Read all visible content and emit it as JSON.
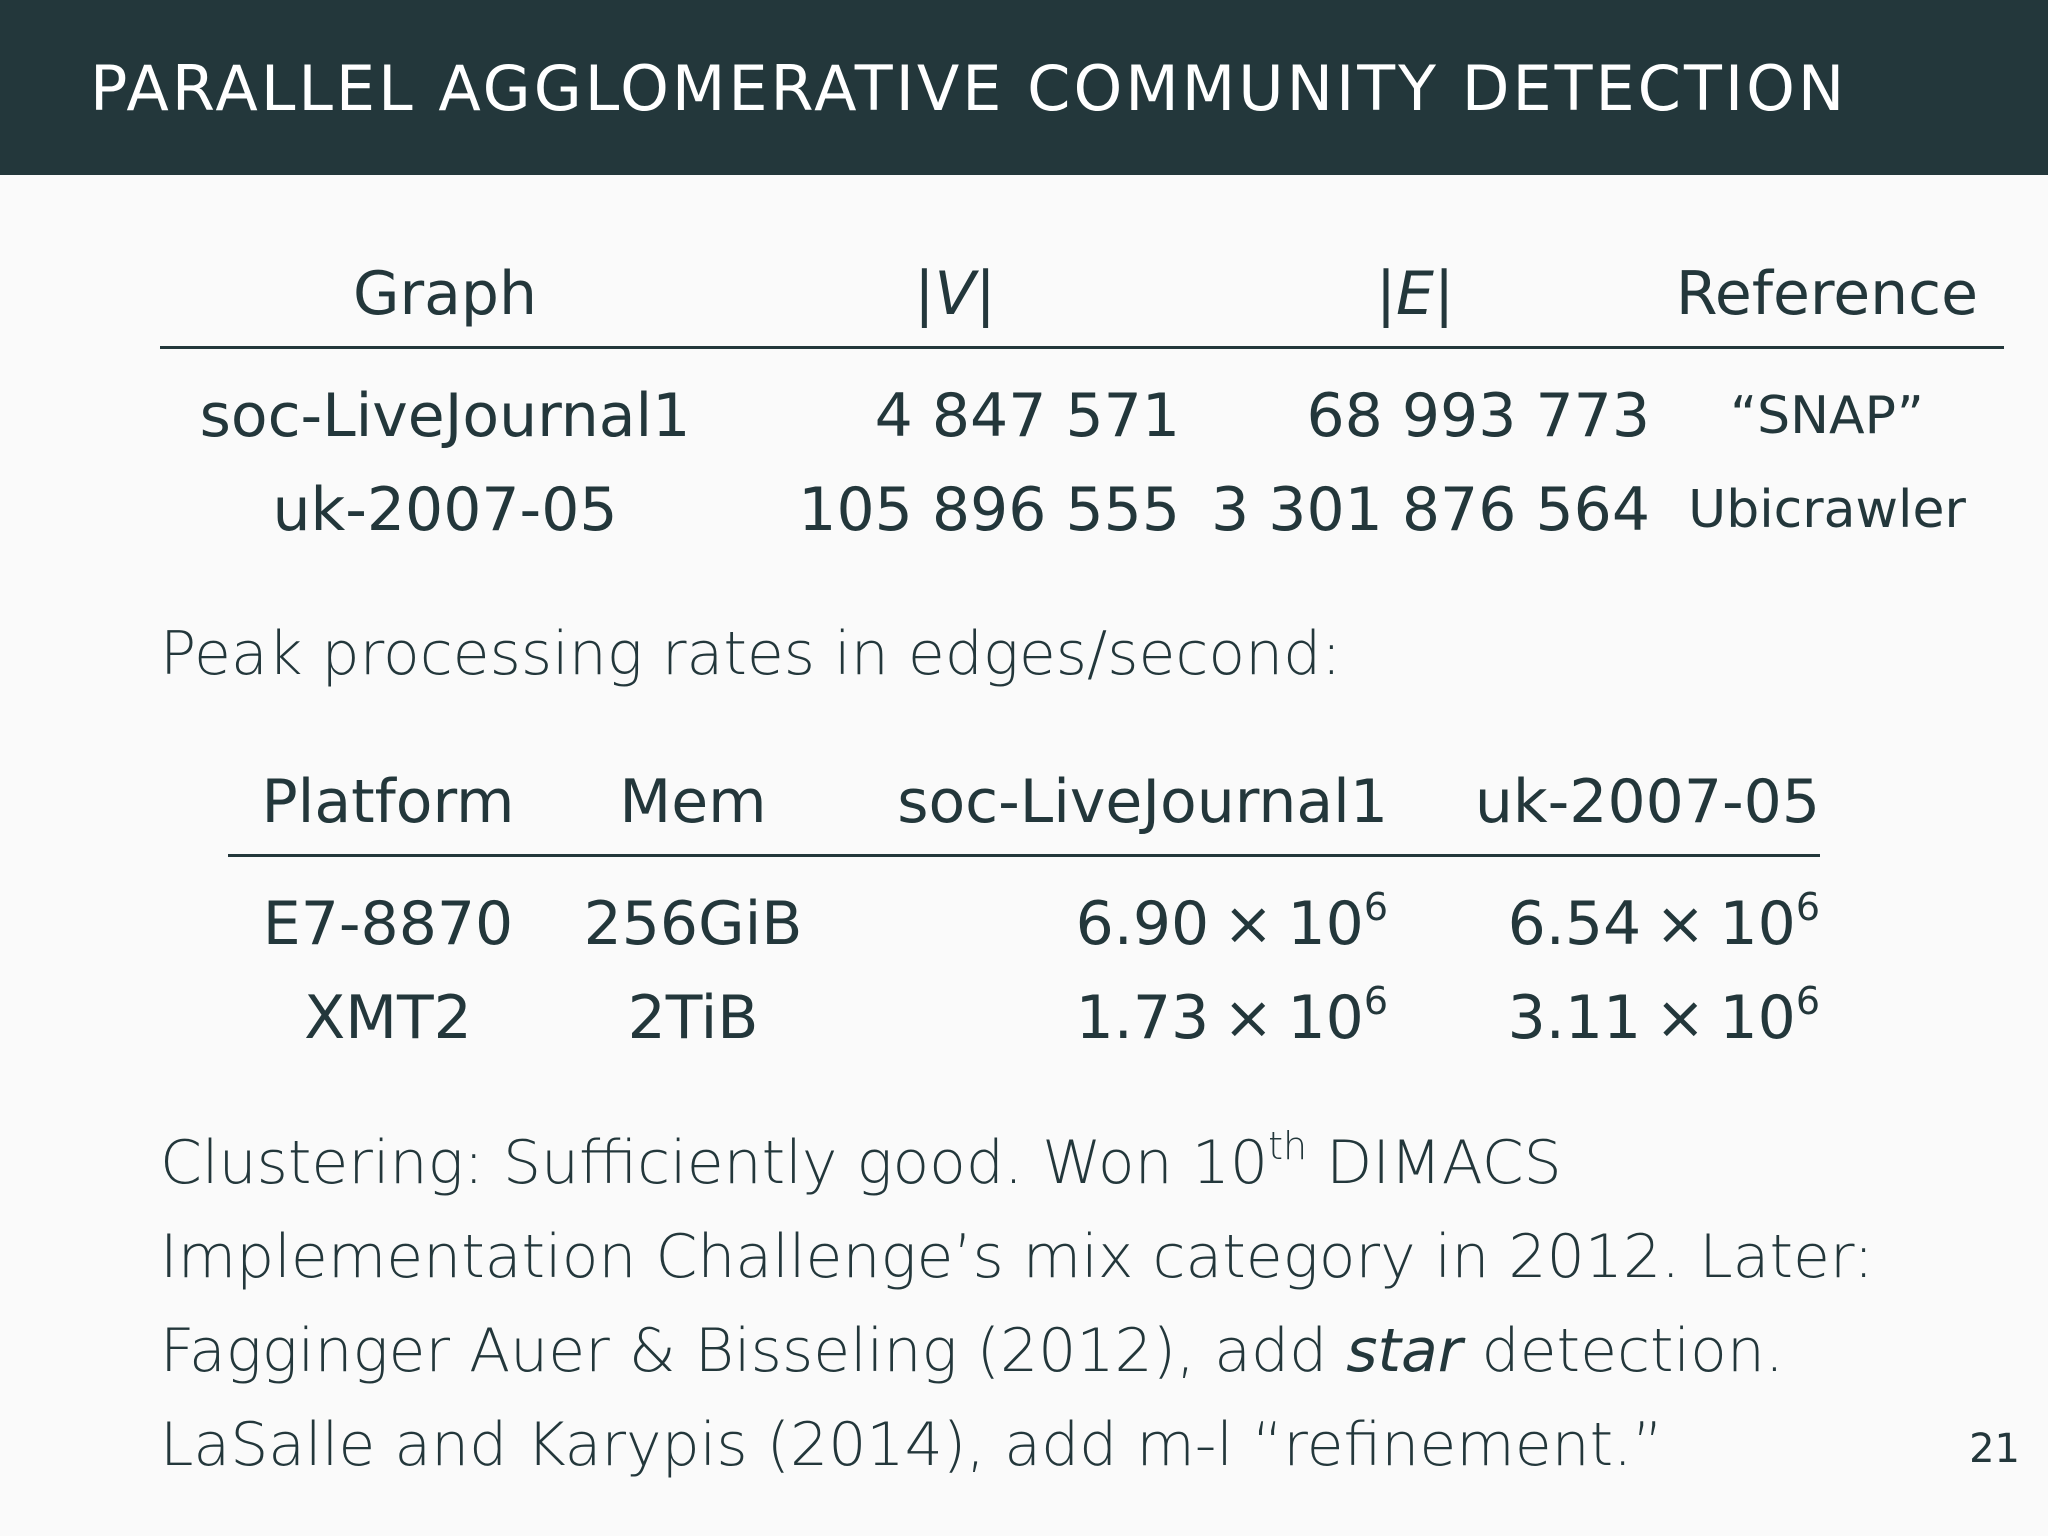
{
  "header": {
    "title": "PARALLEL AGGLOMERATIVE COMMUNITY DETECTION"
  },
  "graph_table": {
    "headers": {
      "graph": "Graph",
      "v": "|V|",
      "e": "|E|",
      "reference": "Reference"
    },
    "rows": [
      {
        "graph": "soc-LiveJournal1",
        "v": "4 847 571",
        "e": "68 993 773",
        "reference": "“SNAP”"
      },
      {
        "graph": "uk-2007-05",
        "v": "105 896 555",
        "e": "3 301 876 564",
        "reference": "Ubicrawler"
      }
    ]
  },
  "rates_heading": "Peak processing rates in edges/second:",
  "rates_table": {
    "headers": {
      "platform": "Platform",
      "mem": "Mem",
      "lj": "soc-LiveJournal1",
      "uk": "uk-2007-05"
    },
    "times_symbol": "×",
    "rows": [
      {
        "platform": "E7-8870",
        "mem": "256GiB",
        "lj_mant": "6.90",
        "lj_base": "10",
        "lj_exp": "6",
        "uk_mant": "6.54",
        "uk_base": "10",
        "uk_exp": "6"
      },
      {
        "platform": "XMT2",
        "mem": "2TiB",
        "lj_mant": "1.73",
        "lj_base": "10",
        "lj_exp": "6",
        "uk_mant": "3.11",
        "uk_base": "10",
        "uk_exp": "6"
      }
    ]
  },
  "body": {
    "line1_a": "Clustering: Sufficiently good. Won 10",
    "line1_sup": "th",
    "line1_b": " DIMACS",
    "line2": "Implementation Challenge’s mix category in 2012. Later:",
    "line3_a": "Fagginger Auer & Bisseling (2012), add ",
    "line3_em": "star",
    "line3_b": " detection.",
    "line4": "LaSalle and Karypis (2014), add m-l “refinement.”"
  },
  "page_number": "21"
}
